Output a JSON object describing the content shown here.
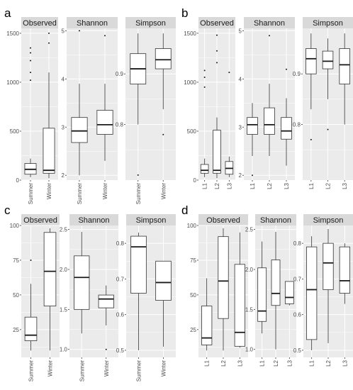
{
  "colors": {
    "panel_bg": "#ebebeb",
    "strip_bg": "#d9d9d9",
    "grid": "#ffffff",
    "box_fill": "#ffffff",
    "box_line": "#333333",
    "text": "#4d4d4d"
  },
  "chart_data": [
    {
      "type": "box",
      "label": "a",
      "categories": [
        "Summer",
        "Winter"
      ],
      "facets": [
        {
          "title": "Observed",
          "ylim": [
            0,
            1550
          ],
          "ticks": [
            0,
            500,
            1000,
            1500
          ],
          "boxes": [
            {
              "min": 30,
              "q1": 60,
              "median": 110,
              "q3": 170,
              "max": 220,
              "outliers": [
                1020,
                1100,
                1220,
                1300,
                1350
              ]
            },
            {
              "min": 20,
              "q1": 70,
              "median": 100,
              "q3": 530,
              "max": 1100,
              "outliers": [
                1400,
                1500
              ]
            }
          ]
        },
        {
          "title": "Shannon",
          "ylim": [
            1.9,
            5.05
          ],
          "ticks": [
            2,
            3,
            4,
            5
          ],
          "boxes": [
            {
              "min": 2.0,
              "q1": 2.68,
              "median": 2.92,
              "q3": 3.2,
              "max": 3.9,
              "outliers": [
                5.0
              ]
            },
            {
              "min": 2.3,
              "q1": 2.85,
              "median": 3.05,
              "q3": 3.35,
              "max": 3.9,
              "outliers": [
                4.9
              ]
            }
          ]
        },
        {
          "title": "Simpson",
          "ylim": [
            0.69,
            0.99
          ],
          "ticks": [
            0.8,
            0.9
          ],
          "boxes": [
            {
              "min": 0.8,
              "q1": 0.88,
              "median": 0.91,
              "q3": 0.94,
              "max": 0.98,
              "outliers": [
                0.7
              ]
            },
            {
              "min": 0.83,
              "q1": 0.91,
              "median": 0.928,
              "q3": 0.95,
              "max": 0.98,
              "outliers": [
                0.78
              ]
            }
          ]
        }
      ]
    },
    {
      "type": "box",
      "label": "b",
      "categories": [
        "L1",
        "L2",
        "L3"
      ],
      "facets": [
        {
          "title": "Observed",
          "ylim": [
            0,
            1550
          ],
          "ticks": [
            0,
            500,
            1000,
            1500
          ],
          "boxes": [
            {
              "min": 30,
              "q1": 70,
              "median": 100,
              "q3": 160,
              "max": 220,
              "outliers": [
                950,
                1050,
                1120
              ]
            },
            {
              "min": 20,
              "q1": 70,
              "median": 100,
              "q3": 510,
              "max": 640,
              "outliers": [
                1200,
                1320,
                1480
              ]
            },
            {
              "min": 30,
              "q1": 60,
              "median": 120,
              "q3": 190,
              "max": 240,
              "outliers": [
                1100
              ]
            }
          ]
        },
        {
          "title": "Shannon",
          "ylim": [
            1.9,
            5.05
          ],
          "ticks": [
            2,
            3,
            4,
            5
          ],
          "boxes": [
            {
              "min": 2.4,
              "q1": 2.85,
              "median": 3.05,
              "q3": 3.2,
              "max": 3.5,
              "outliers": [
                2.0
              ]
            },
            {
              "min": 2.4,
              "q1": 2.85,
              "median": 3.05,
              "q3": 3.4,
              "max": 3.9,
              "outliers": [
                4.9
              ]
            },
            {
              "min": 2.2,
              "q1": 2.75,
              "median": 2.92,
              "q3": 3.2,
              "max": 3.6,
              "outliers": [
                4.2
              ]
            }
          ]
        },
        {
          "title": "Simpson",
          "ylim": [
            0.69,
            0.99
          ],
          "ticks": [
            0.8,
            0.9
          ],
          "boxes": [
            {
              "min": 0.83,
              "q1": 0.9,
              "median": 0.93,
              "q3": 0.95,
              "max": 0.98,
              "outliers": [
                0.77
              ]
            },
            {
              "min": 0.85,
              "q1": 0.91,
              "median": 0.925,
              "q3": 0.945,
              "max": 0.97,
              "outliers": [
                0.79
              ]
            },
            {
              "min": 0.8,
              "q1": 0.88,
              "median": 0.918,
              "q3": 0.95,
              "max": 0.98,
              "outliers": []
            }
          ]
        }
      ]
    },
    {
      "type": "box",
      "label": "c",
      "categories": [
        "Summer",
        "Winter"
      ],
      "facets": [
        {
          "title": "Observed",
          "ylim": [
            5,
            100
          ],
          "ticks": [
            25,
            50,
            75,
            100
          ],
          "boxes": [
            {
              "min": 10,
              "q1": 17,
              "median": 21,
              "q3": 34,
              "max": 58,
              "outliers": [
                75
              ]
            },
            {
              "min": 10,
              "q1": 42,
              "median": 67,
              "q3": 95,
              "max": 98,
              "outliers": []
            }
          ]
        },
        {
          "title": "Shannon",
          "ylim": [
            0.9,
            2.55
          ],
          "ticks": [
            1.0,
            1.5,
            2.0,
            2.5
          ],
          "boxes": [
            {
              "min": 1.2,
              "q1": 1.5,
              "median": 1.9,
              "q3": 2.17,
              "max": 2.47,
              "outliers": []
            },
            {
              "min": 1.3,
              "q1": 1.52,
              "median": 1.63,
              "q3": 1.68,
              "max": 1.8,
              "outliers": [
                1.0
              ]
            }
          ]
        },
        {
          "title": "Simpson",
          "ylim": [
            0.48,
            0.85
          ],
          "ticks": [
            0.5,
            0.6,
            0.7,
            0.8
          ],
          "boxes": [
            {
              "min": 0.5,
              "q1": 0.66,
              "median": 0.79,
              "q3": 0.82,
              "max": 0.83,
              "outliers": []
            },
            {
              "min": 0.51,
              "q1": 0.64,
              "median": 0.69,
              "q3": 0.75,
              "max": 0.75,
              "outliers": []
            }
          ]
        }
      ]
    },
    {
      "type": "box",
      "label": "d",
      "categories": [
        "L1",
        "L2",
        "L3"
      ],
      "facets": [
        {
          "title": "Observed",
          "ylim": [
            5,
            100
          ],
          "ticks": [
            25,
            50,
            75,
            100
          ],
          "boxes": [
            {
              "min": 10,
              "q1": 14,
              "median": 19,
              "q3": 42,
              "max": 62,
              "outliers": []
            },
            {
              "min": 10,
              "q1": 33,
              "median": 60,
              "q3": 92,
              "max": 98,
              "outliers": []
            },
            {
              "min": 12,
              "q1": 13,
              "median": 23,
              "q3": 72,
              "max": 95,
              "outliers": []
            }
          ]
        },
        {
          "title": "Shannon",
          "ylim": [
            0.9,
            2.55
          ],
          "ticks": [
            1.0,
            1.5,
            2.0,
            2.5
          ],
          "boxes": [
            {
              "min": 1.2,
              "q1": 1.35,
              "median": 1.48,
              "q3": 2.02,
              "max": 2.35,
              "outliers": []
            },
            {
              "min": 1.0,
              "q1": 1.55,
              "median": 1.7,
              "q3": 2.12,
              "max": 2.47,
              "outliers": []
            },
            {
              "min": 1.55,
              "q1": 1.57,
              "median": 1.65,
              "q3": 1.85,
              "max": 1.85,
              "outliers": []
            }
          ]
        },
        {
          "title": "Simpson",
          "ylim": [
            0.48,
            0.85
          ],
          "ticks": [
            0.5,
            0.6,
            0.7,
            0.8
          ],
          "boxes": [
            {
              "min": 0.5,
              "q1": 0.53,
              "median": 0.67,
              "q3": 0.79,
              "max": 0.82,
              "outliers": []
            },
            {
              "min": 0.52,
              "q1": 0.67,
              "median": 0.745,
              "q3": 0.8,
              "max": 0.84,
              "outliers": []
            },
            {
              "min": 0.63,
              "q1": 0.66,
              "median": 0.695,
              "q3": 0.79,
              "max": 0.8,
              "outliers": []
            }
          ]
        }
      ]
    }
  ]
}
